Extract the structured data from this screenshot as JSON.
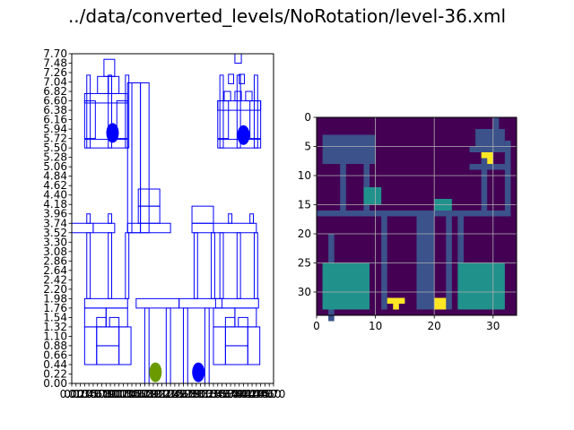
{
  "figure_title": "../data/converted_levels/NoRotation/level-36.xml",
  "colors": {
    "outline": "#0000ff",
    "pig": "#0000ff",
    "bird": "#6a9a00",
    "viridis_dark": "#440154",
    "viridis_mid": "#3b528b",
    "viridis_teal": "#21918c",
    "viridis_yellow": "#fde725",
    "grid": "#b0b0b0"
  },
  "chart_data": [
    {
      "type": "diagram",
      "title": "",
      "xlabel": "",
      "ylabel": "",
      "ylim": [
        0,
        7.7
      ],
      "xlim": [
        0,
        4.7
      ],
      "y_ticks": [
        "0.00",
        "0.22",
        "0.44",
        "0.66",
        "0.88",
        "1.10",
        "1.32",
        "1.54",
        "1.76",
        "1.98",
        "2.20",
        "2.42",
        "2.64",
        "2.86",
        "3.08",
        "3.30",
        "3.52",
        "3.74",
        "3.96",
        "4.18",
        "4.40",
        "4.62",
        "4.84",
        "5.06",
        "5.28",
        "5.50",
        "5.72",
        "5.94",
        "6.16",
        "6.38",
        "6.60",
        "6.82",
        "7.04",
        "7.26",
        "7.48",
        "7.70"
      ],
      "x_ticks": [
        "0.00",
        "0.10",
        "0.20",
        "0.30",
        "0.40",
        "0.50",
        "0.60",
        "0.70",
        "0.80",
        "0.90",
        "1.00",
        "1.10",
        "1.20",
        "1.30",
        "1.40",
        "1.50",
        "1.60",
        "1.70",
        "1.80",
        "1.90",
        "2.00",
        "2.10",
        "2.20",
        "2.30",
        "2.40",
        "2.50",
        "2.60",
        "2.70",
        "2.80",
        "2.90",
        "3.00",
        "3.10",
        "3.20",
        "3.30",
        "3.40",
        "3.50",
        "3.60",
        "3.70",
        "3.80",
        "3.90",
        "4.00",
        "4.10",
        "4.20",
        "4.30",
        "4.40",
        "4.50",
        "4.60",
        "4.70"
      ],
      "blocks": [
        [
          0.3,
          0.44,
          0.28,
          0.88
        ],
        [
          0.58,
          0.44,
          0.52,
          0.44
        ],
        [
          0.58,
          0.88,
          0.52,
          0.44
        ],
        [
          0.58,
          1.32,
          0.22,
          0.22
        ],
        [
          0.88,
          1.32,
          0.22,
          0.22
        ],
        [
          1.1,
          0.44,
          0.28,
          0.88
        ],
        [
          0.3,
          1.32,
          0.5,
          0.44
        ],
        [
          0.8,
          1.32,
          0.5,
          0.44
        ],
        [
          0.3,
          1.76,
          1.0,
          0.22
        ],
        [
          0.35,
          1.98,
          0.08,
          1.54
        ],
        [
          0.85,
          1.98,
          0.08,
          1.54
        ],
        [
          1.25,
          1.98,
          0.08,
          1.54
        ],
        [
          0.0,
          3.52,
          0.5,
          0.22
        ],
        [
          0.5,
          3.52,
          0.5,
          0.22
        ],
        [
          0.35,
          3.74,
          0.08,
          0.22
        ],
        [
          0.85,
          3.74,
          0.08,
          0.22
        ],
        [
          0.35,
          5.5,
          0.08,
          1.7
        ],
        [
          0.85,
          5.5,
          0.08,
          1.7
        ],
        [
          1.25,
          5.5,
          0.08,
          1.7
        ],
        [
          0.3,
          5.5,
          1.0,
          0.2
        ],
        [
          0.3,
          5.72,
          0.25,
          0.88
        ],
        [
          1.05,
          5.72,
          0.25,
          0.88
        ],
        [
          0.3,
          6.55,
          1.0,
          0.22
        ],
        [
          0.6,
          6.77,
          0.25,
          0.4
        ],
        [
          0.85,
          6.77,
          0.25,
          0.4
        ],
        [
          0.75,
          7.17,
          0.25,
          0.4
        ],
        [
          1.3,
          3.52,
          0.1,
          3.5
        ],
        [
          1.4,
          3.52,
          0.2,
          3.5
        ],
        [
          1.6,
          3.52,
          0.2,
          3.5
        ],
        [
          1.3,
          3.52,
          1.0,
          0.22
        ],
        [
          1.55,
          3.74,
          0.5,
          0.4
        ],
        [
          1.55,
          4.14,
          0.5,
          0.4
        ],
        [
          1.5,
          1.76,
          1.0,
          0.22
        ],
        [
          1.7,
          0.0,
          0.1,
          1.76
        ],
        [
          2.2,
          0.0,
          0.1,
          1.76
        ],
        [
          2.5,
          1.76,
          1.0,
          0.22
        ],
        [
          2.6,
          0.0,
          0.1,
          1.76
        ],
        [
          3.1,
          0.0,
          0.1,
          1.76
        ],
        [
          2.8,
          3.52,
          0.5,
          0.22
        ],
        [
          2.8,
          3.74,
          0.5,
          0.4
        ],
        [
          2.85,
          1.98,
          0.08,
          1.54
        ],
        [
          3.25,
          1.98,
          0.08,
          1.54
        ],
        [
          3.3,
          3.52,
          1.0,
          0.22
        ],
        [
          3.65,
          3.74,
          0.08,
          0.22
        ],
        [
          4.15,
          3.74,
          0.08,
          0.22
        ],
        [
          3.35,
          1.76,
          1.0,
          0.22
        ],
        [
          3.3,
          1.32,
          0.5,
          0.44
        ],
        [
          3.8,
          1.32,
          0.5,
          0.44
        ],
        [
          3.3,
          0.44,
          0.28,
          0.88
        ],
        [
          3.58,
          0.44,
          0.52,
          0.44
        ],
        [
          3.58,
          0.88,
          0.52,
          0.44
        ],
        [
          3.58,
          1.32,
          0.22,
          0.22
        ],
        [
          3.88,
          1.32,
          0.22,
          0.22
        ],
        [
          4.1,
          0.44,
          0.28,
          0.88
        ],
        [
          3.45,
          1.98,
          0.08,
          1.54
        ],
        [
          3.85,
          1.98,
          0.08,
          1.54
        ],
        [
          4.25,
          1.98,
          0.08,
          1.54
        ],
        [
          3.45,
          5.5,
          0.08,
          1.7
        ],
        [
          3.85,
          5.5,
          0.08,
          1.7
        ],
        [
          4.25,
          5.5,
          0.08,
          1.7
        ],
        [
          3.4,
          5.5,
          1.0,
          0.2
        ],
        [
          3.4,
          5.72,
          0.25,
          0.88
        ],
        [
          4.15,
          5.72,
          0.25,
          0.88
        ],
        [
          3.4,
          6.38,
          1.0,
          0.22
        ],
        [
          3.55,
          6.6,
          0.15,
          0.22
        ],
        [
          3.8,
          6.6,
          0.15,
          0.22
        ],
        [
          4.05,
          6.6,
          0.15,
          0.22
        ],
        [
          3.65,
          7.0,
          0.12,
          0.22
        ],
        [
          3.9,
          7.0,
          0.12,
          0.22
        ],
        [
          3.8,
          7.48,
          0.15,
          0.22
        ]
      ],
      "pigs": [
        [
          0.95,
          5.85
        ],
        [
          2.95,
          0.26
        ],
        [
          4.0,
          5.8
        ]
      ],
      "birds": [
        [
          1.95,
          0.26
        ]
      ]
    },
    {
      "type": "heatmap",
      "title": "",
      "xlim": [
        0,
        34
      ],
      "ylim": [
        34,
        0
      ],
      "x_ticks": [
        "0",
        "10",
        "20",
        "30"
      ],
      "y_ticks": [
        "0",
        "5",
        "10",
        "15",
        "20",
        "25",
        "30"
      ],
      "grid": true,
      "cells_mid": [
        [
          2,
          20,
          3,
          35
        ],
        [
          8,
          20,
          3,
          35
        ],
        [
          14,
          16,
          3,
          35
        ],
        [
          20,
          16,
          3,
          35
        ],
        [
          26,
          20,
          3,
          35
        ],
        [
          30,
          20,
          3,
          35
        ],
        [
          0,
          16,
          33,
          17
        ],
        [
          1,
          3,
          10,
          8
        ],
        [
          1,
          4,
          1,
          8
        ],
        [
          5,
          4,
          6,
          8
        ],
        [
          9,
          4,
          10,
          8
        ],
        [
          17,
          16,
          20,
          33
        ],
        [
          22,
          16,
          23,
          33
        ],
        [
          11,
          16,
          12,
          33
        ],
        [
          24,
          16,
          25,
          33
        ],
        [
          4,
          4,
          5,
          16
        ],
        [
          8,
          4,
          9,
          16
        ],
        [
          28,
          4,
          29,
          16
        ],
        [
          32,
          4,
          33,
          16
        ],
        [
          26,
          5,
          33,
          6
        ],
        [
          26,
          8,
          33,
          9
        ],
        [
          27,
          2,
          32,
          5
        ],
        [
          30,
          0,
          31,
          2
        ]
      ],
      "cells_teal": [
        [
          1,
          25,
          9,
          33
        ],
        [
          24,
          25,
          32,
          33
        ],
        [
          8,
          12,
          11,
          15
        ],
        [
          20,
          14,
          23,
          16
        ]
      ],
      "cells_yellow": [
        [
          12,
          31,
          15,
          32
        ],
        [
          13,
          31,
          14,
          33
        ],
        [
          20,
          31,
          22,
          33
        ],
        [
          28,
          6,
          30,
          7
        ],
        [
          29,
          7,
          30,
          8
        ]
      ]
    }
  ]
}
